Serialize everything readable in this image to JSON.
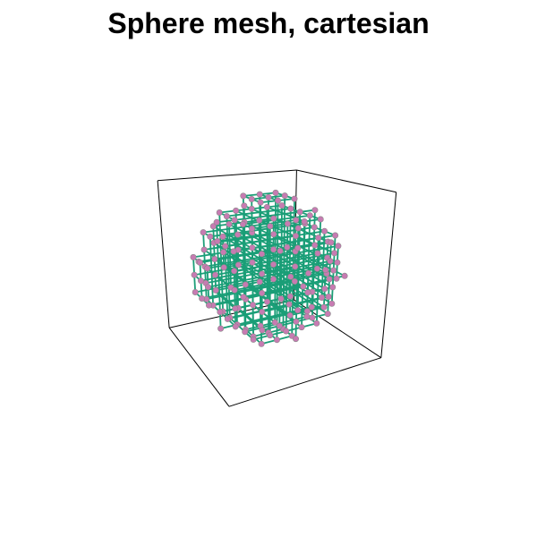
{
  "title": "Sphere mesh, cartesian",
  "colors": {
    "edge": "#1a9e77",
    "node_fill": "#c77bb2",
    "node_stroke": "#8a8a8a",
    "box": "#000000",
    "background": "#ffffff"
  },
  "mesh": {
    "grid_min": -4,
    "grid_max": 4,
    "radius": 4.3
  },
  "view": {
    "box_extent": 4.6,
    "projection": "perspective"
  }
}
